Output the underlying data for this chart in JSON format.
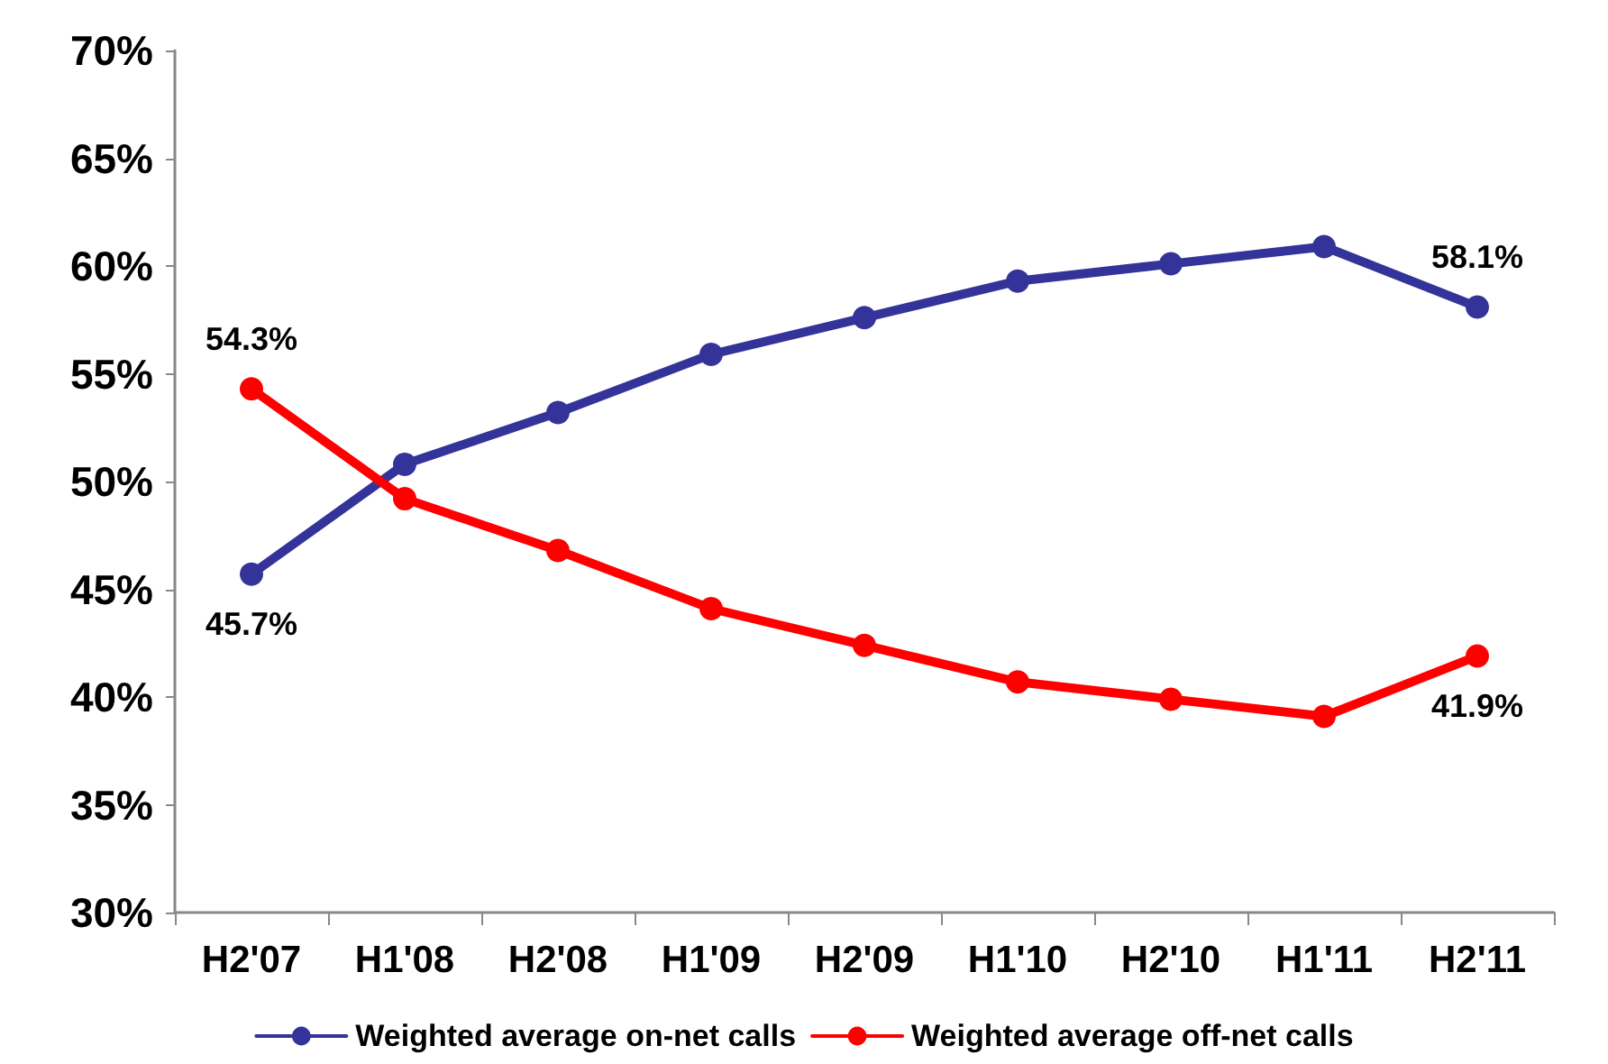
{
  "chart_data": {
    "type": "line",
    "categories": [
      "H2'07",
      "H1'08",
      "H2'08",
      "H1'09",
      "H2'09",
      "H1'10",
      "H2'10",
      "H1'11",
      "H2'11"
    ],
    "series": [
      {
        "name": "Weighted average on-net calls",
        "color": "#333399",
        "values": [
          45.7,
          50.8,
          53.2,
          55.9,
          57.6,
          59.3,
          60.1,
          60.9,
          58.1
        ],
        "value_labels": [
          "45.7%",
          null,
          null,
          null,
          null,
          null,
          null,
          null,
          "58.1%"
        ]
      },
      {
        "name": "Weighted average off-net calls",
        "color": "#ff0000",
        "values": [
          54.3,
          49.2,
          46.8,
          44.1,
          42.4,
          40.7,
          39.9,
          39.1,
          41.9
        ],
        "value_labels": [
          "54.3%",
          null,
          null,
          null,
          null,
          null,
          null,
          null,
          "41.9%"
        ]
      }
    ],
    "ylim": [
      30,
      70
    ],
    "yticks": [
      {
        "value": 30,
        "label": "30%"
      },
      {
        "value": 35,
        "label": "35%"
      },
      {
        "value": 40,
        "label": "40%"
      },
      {
        "value": 45,
        "label": "45%"
      },
      {
        "value": 50,
        "label": "50%"
      },
      {
        "value": 55,
        "label": "55%"
      },
      {
        "value": 60,
        "label": "60%"
      },
      {
        "value": 65,
        "label": "65%"
      },
      {
        "value": 70,
        "label": "70%"
      }
    ],
    "grid": false,
    "legend": "bottom",
    "marker": "circle",
    "line_style": "solid"
  }
}
